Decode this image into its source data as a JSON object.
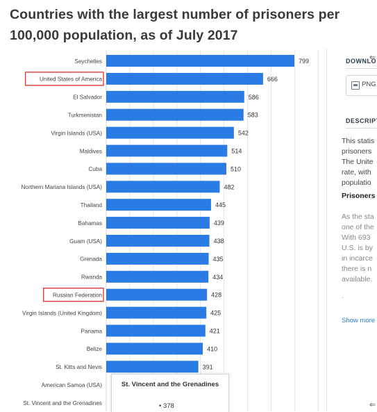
{
  "title": "Countries with the largest number of prisoners per 100,000 population, as of July 2017",
  "chart_data": {
    "type": "bar",
    "orientation": "horizontal",
    "bar_color": "#2a7be4",
    "highlight_color": "#e03b3b",
    "highlighted": [
      "United States of America",
      "Russian Federation"
    ],
    "xlim": [
      0,
      1000
    ],
    "grid": true,
    "categories": [
      "Seychelles",
      "United States of America",
      "El Salvador",
      "Turkmenistan",
      "Virgin Islands (USA)",
      "Maldives",
      "Cuba",
      "Northern Mariana Islands (USA)",
      "Thailand",
      "Bahamas",
      "Guam (USA)",
      "Grenada",
      "Rwanda",
      "Russian Federation",
      "Virgin Islands (United Kingdom)",
      "Panama",
      "Belize",
      "St. Kitts and Nevis",
      "American Samoa (USA)",
      "St. Vincent and the Grenadines"
    ],
    "values": [
      799,
      666,
      586,
      583,
      542,
      514,
      510,
      482,
      445,
      439,
      438,
      435,
      434,
      428,
      425,
      421,
      410,
      391,
      null,
      null
    ]
  },
  "sidebar": {
    "download_heading": "DOWNLO",
    "png_label": "PNG",
    "description_heading": "DESCRIPT",
    "description_lines": [
      "This statis",
      "prisoners",
      "The Unite",
      "rate, with",
      "populatio"
    ],
    "subheading": "Prisoners",
    "body_lines": [
      "As the sta",
      "one of the",
      "With 693",
      "U.S. is by",
      "in incarce",
      "there is n",
      "available."
    ],
    "dot": ".",
    "show_more": "Show more"
  },
  "tooltip": {
    "title": "St. Vincent and the Grenadines",
    "value": "• 378"
  },
  "cursor_glyph": "⇐"
}
